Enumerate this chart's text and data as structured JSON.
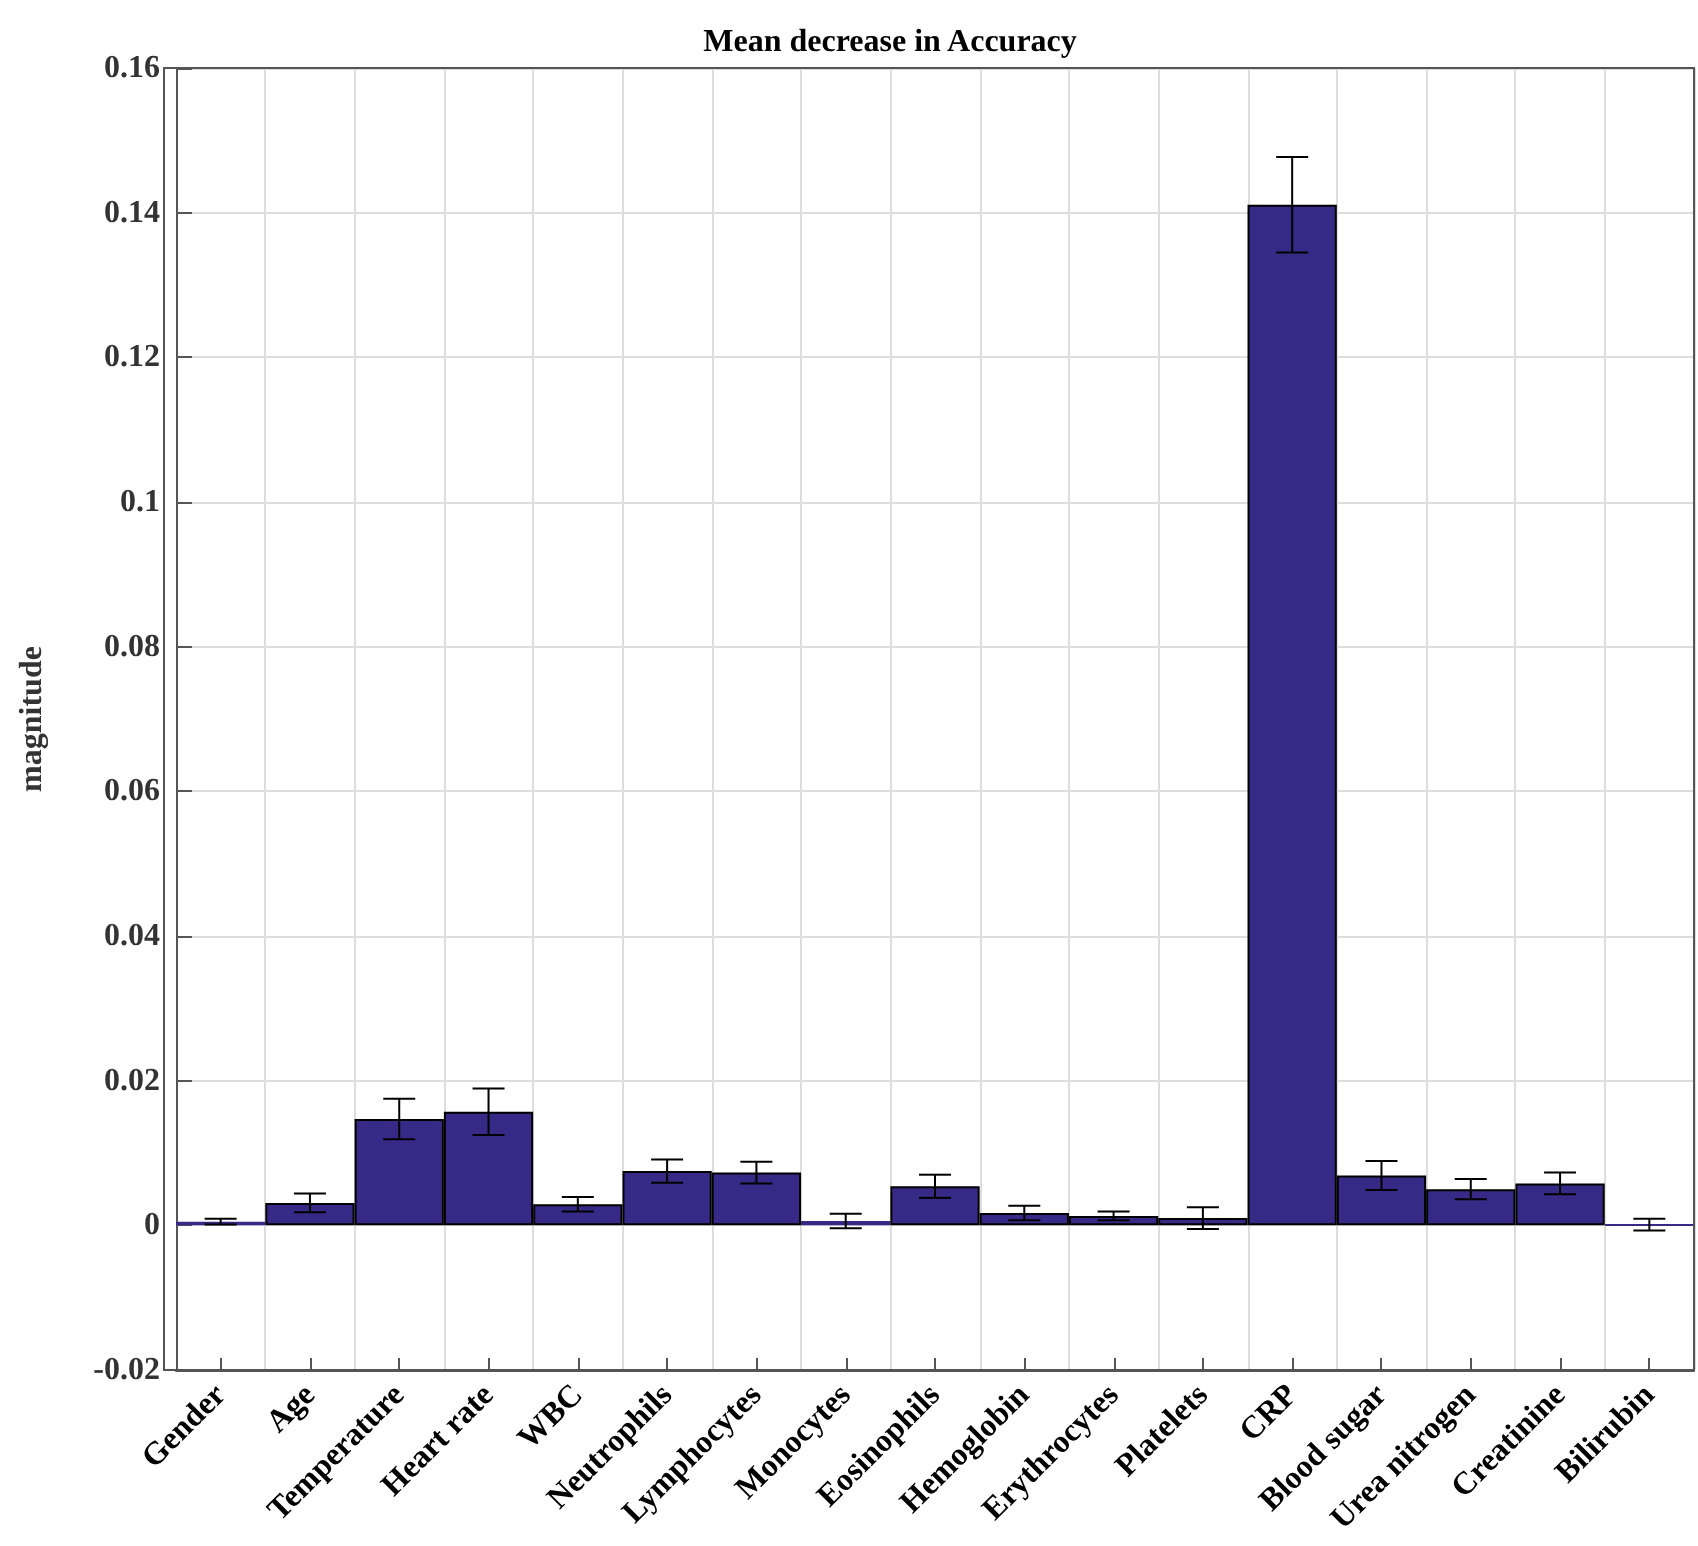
{
  "chart_data": {
    "type": "bar",
    "title": "Mean decrease in Accuracy",
    "ylabel": "magnitude",
    "categories": [
      "Gender",
      "Age",
      "Temperature",
      "Heart rate",
      "WBC",
      "Neutrophils",
      "Lymphocytes",
      "Monocytes",
      "Eosinophils",
      "Hemoglobin",
      "Erythrocytes",
      "Platelets",
      "CRP",
      "Blood sugar",
      "Urea nitrogen",
      "Creatinine",
      "Bilirubin"
    ],
    "values": [
      0.0005,
      0.0031,
      0.0147,
      0.0157,
      0.0029,
      0.0075,
      0.0073,
      0.0006,
      0.0054,
      0.0017,
      0.0013,
      0.001,
      0.1411,
      0.0069,
      0.005,
      0.0058,
      0.0001
    ],
    "errors": [
      0.0004,
      0.0013,
      0.0028,
      0.0032,
      0.001,
      0.0016,
      0.0015,
      0.001,
      0.0016,
      0.001,
      0.0006,
      0.0015,
      0.0066,
      0.002,
      0.0014,
      0.0015,
      0.0008
    ],
    "color": "#362a86",
    "ylim": [
      -0.02,
      0.16
    ],
    "yticks": [
      -0.02,
      0,
      0.02,
      0.04,
      0.06,
      0.08,
      0.1,
      0.12,
      0.14,
      0.16
    ],
    "grid": true
  }
}
